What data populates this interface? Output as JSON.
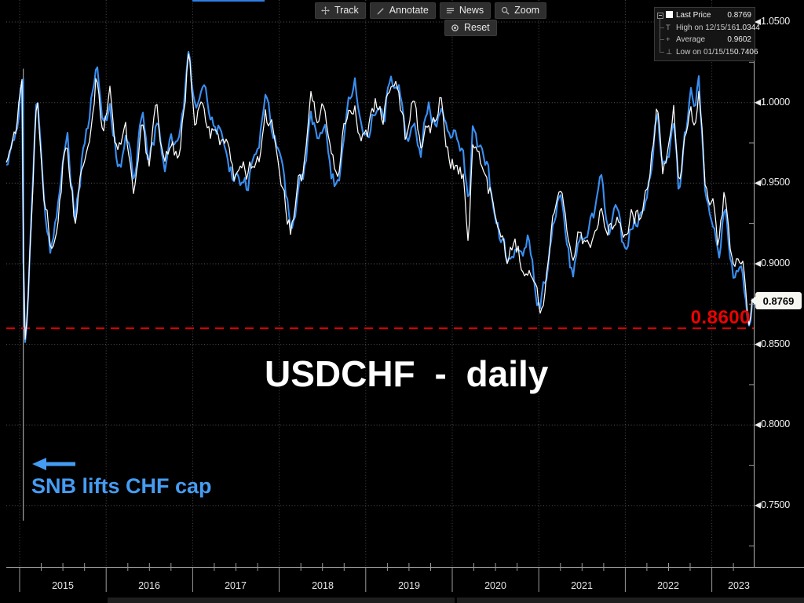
{
  "title": "USDCHF - daily",
  "last_price_badge": "0.8769",
  "toolbar": {
    "buttons": [
      {
        "label": "Track",
        "icon": "track-move-icon"
      },
      {
        "label": "Annotate",
        "icon": "pencil-icon"
      },
      {
        "label": "News",
        "icon": "news-lines-icon"
      },
      {
        "label": "Zoom",
        "icon": "magnifier-icon"
      }
    ],
    "reset": {
      "label": "Reset",
      "icon": "reset-circle-icon"
    }
  },
  "legend": {
    "rows": [
      {
        "icon": "last-price-swatch-icon",
        "label": "Last Price",
        "value": "0.8769"
      },
      {
        "icon": "high-marker-icon",
        "label": "High on 12/15/16",
        "value": "1.0344"
      },
      {
        "icon": "average-marker-icon",
        "label": "Average",
        "value": "0.9602"
      },
      {
        "icon": "low-marker-icon",
        "label": "Low on 01/15/15",
        "value": "0.7406"
      }
    ]
  },
  "annotation": {
    "text": "SNB lifts CHF cap",
    "color": "#459cf2"
  },
  "support_line": {
    "label": "0.8600",
    "value": 0.86,
    "color": "#e00000",
    "label_color": "#ee0202"
  },
  "chart_data": {
    "type": "line",
    "title": "USDCHF - daily",
    "series": [
      {
        "name": "USDCHF Last Price",
        "color": "#ffffff",
        "shadow_color": "#3a8ff2"
      }
    ],
    "stats": {
      "last": 0.8769,
      "high": 1.0344,
      "high_date": "12/15/16",
      "average": 0.9602,
      "low": 0.7406,
      "low_date": "01/15/15"
    },
    "x_tick_labels": [
      "2015",
      "2016",
      "2017",
      "2018",
      "2019",
      "2020",
      "2021",
      "2022",
      "2023"
    ],
    "y_tick_labels": [
      "1.0500",
      "1.0000",
      "0.9500",
      "0.9000",
      "0.8500",
      "0.8000",
      "0.7500"
    ],
    "y_tick_values": [
      1.05,
      1.0,
      0.95,
      0.9,
      0.85,
      0.8,
      0.75
    ],
    "y_minor_tick_values": [
      1.025,
      0.975,
      0.925,
      0.875,
      0.825,
      0.775,
      0.725
    ],
    "x_range_years": [
      2014.846,
      2023.46
    ],
    "support_level": 0.86,
    "crash_wick": {
      "t": 2015.043,
      "from": 1.021,
      "to": 0.7406
    },
    "grid": true,
    "legend_position": "top-right",
    "anchors": {
      "t": [
        2014.846,
        2014.9,
        2014.96,
        2015.0,
        2015.035,
        2015.05,
        2015.09,
        2015.13,
        2015.2,
        2015.27,
        2015.36,
        2015.45,
        2015.55,
        2015.6,
        2015.64,
        2015.72,
        2015.8,
        2015.89,
        2015.96,
        2016.05,
        2016.13,
        2016.22,
        2016.32,
        2016.42,
        2016.5,
        2016.58,
        2016.67,
        2016.76,
        2016.83,
        2016.9,
        2016.955,
        2017.02,
        2017.12,
        2017.22,
        2017.32,
        2017.42,
        2017.52,
        2017.62,
        2017.7,
        2017.78,
        2017.84,
        2017.9,
        2017.97,
        2018.04,
        2018.13,
        2018.2,
        2018.28,
        2018.37,
        2018.45,
        2018.52,
        2018.6,
        2018.7,
        2018.78,
        2018.87,
        2018.95,
        2019.05,
        2019.12,
        2019.2,
        2019.3,
        2019.38,
        2019.46,
        2019.55,
        2019.63,
        2019.72,
        2019.8,
        2019.88,
        2019.97,
        2020.05,
        2020.13,
        2020.19,
        2020.23,
        2020.3,
        2020.4,
        2020.47,
        2020.55,
        2020.63,
        2020.72,
        2020.8,
        2020.88,
        2020.97,
        2021.02,
        2021.1,
        2021.18,
        2021.25,
        2021.32,
        2021.4,
        2021.48,
        2021.55,
        2021.63,
        2021.72,
        2021.8,
        2021.88,
        2021.97,
        2022.05,
        2022.12,
        2022.2,
        2022.28,
        2022.37,
        2022.43,
        2022.5,
        2022.56,
        2022.62,
        2022.69,
        2022.76,
        2022.8,
        2022.845,
        2022.92,
        2022.97,
        2023.03,
        2023.08,
        2023.15,
        2023.2,
        2023.25,
        2023.3,
        2023.36,
        2023.41,
        2023.44,
        2023.46
      ],
      "v": [
        0.96,
        0.972,
        0.982,
        0.998,
        1.018,
        0.845,
        0.868,
        0.922,
        1.012,
        0.95,
        0.908,
        0.938,
        0.986,
        0.952,
        0.928,
        0.968,
        0.996,
        1.03,
        0.988,
        1.002,
        0.968,
        0.986,
        0.945,
        0.99,
        0.958,
        0.988,
        0.962,
        0.98,
        0.97,
        1.004,
        1.0344,
        1.001,
        1.01,
        0.992,
        0.982,
        0.968,
        0.952,
        0.944,
        0.964,
        0.975,
        1.001,
        0.991,
        0.976,
        0.952,
        0.921,
        0.944,
        0.958,
        1.0,
        0.986,
        0.999,
        0.972,
        0.959,
        0.994,
        1.011,
        0.986,
        0.992,
        1.001,
        0.992,
        1.02,
        1.007,
        0.971,
        0.989,
        0.968,
        0.991,
        0.984,
        0.997,
        0.968,
        0.971,
        0.961,
        0.92,
        0.984,
        0.967,
        0.961,
        0.942,
        0.919,
        0.906,
        0.916,
        0.903,
        0.911,
        0.886,
        0.877,
        0.896,
        0.926,
        0.943,
        0.919,
        0.894,
        0.921,
        0.911,
        0.917,
        0.936,
        0.916,
        0.931,
        0.914,
        0.921,
        0.928,
        0.936,
        0.956,
        1.004,
        0.957,
        0.967,
        0.99,
        0.941,
        0.977,
        1.001,
        0.983,
        1.0148,
        0.944,
        0.931,
        0.928,
        0.906,
        0.94,
        0.912,
        0.893,
        0.906,
        0.896,
        0.868,
        0.8585,
        0.8769
      ]
    }
  }
}
